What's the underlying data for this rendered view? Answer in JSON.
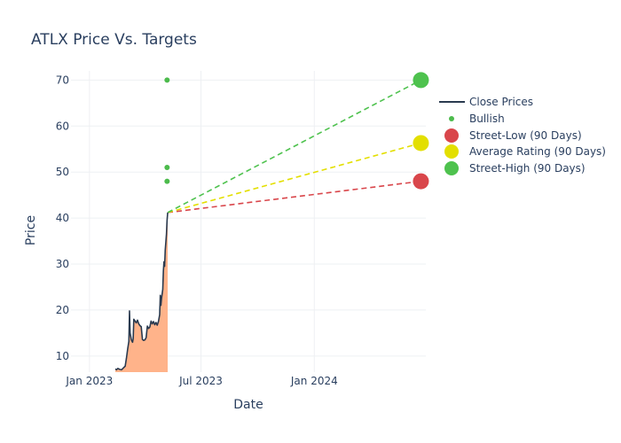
{
  "chart_data": {
    "type": "line",
    "title": "ATLX Price Vs. Targets",
    "xlabel": "Date",
    "ylabel": "Price",
    "x_range": [
      "2022-12-02",
      "2024-06-30"
    ],
    "ylim": [
      6.5,
      72
    ],
    "x_ticks": [
      {
        "date": "2023-01-01",
        "label": "Jan 2023"
      },
      {
        "date": "2023-07-01",
        "label": "Jul 2023"
      },
      {
        "date": "2024-01-01",
        "label": "Jan 2024"
      }
    ],
    "y_ticks": [
      10,
      20,
      30,
      40,
      50,
      60,
      70
    ],
    "grid": true,
    "legend_position": "top-right",
    "series": [
      {
        "name": "Close Prices",
        "kind": "line",
        "color": "#2a3a4f",
        "fill_color": "#ffb38a",
        "points": [
          [
            "2023-02-12",
            7.2
          ],
          [
            "2023-02-14",
            7.0
          ],
          [
            "2023-02-16",
            7.3
          ],
          [
            "2023-02-19",
            7.1
          ],
          [
            "2023-02-22",
            7.0
          ],
          [
            "2023-02-25",
            7.4
          ],
          [
            "2023-02-28",
            7.8
          ],
          [
            "2023-03-02",
            9.5
          ],
          [
            "2023-03-04",
            11.5
          ],
          [
            "2023-03-06",
            13.2
          ],
          [
            "2023-03-07",
            19.8
          ],
          [
            "2023-03-08",
            15.0
          ],
          [
            "2023-03-10",
            13.5
          ],
          [
            "2023-03-12",
            13.0
          ],
          [
            "2023-03-13",
            13.8
          ],
          [
            "2023-03-14",
            18.0
          ],
          [
            "2023-03-16",
            17.6
          ],
          [
            "2023-03-18",
            17.2
          ],
          [
            "2023-03-20",
            17.8
          ],
          [
            "2023-03-22",
            17.0
          ],
          [
            "2023-03-24",
            16.6
          ],
          [
            "2023-03-26",
            16.4
          ],
          [
            "2023-03-28",
            13.6
          ],
          [
            "2023-03-30",
            13.4
          ],
          [
            "2023-04-01",
            13.5
          ],
          [
            "2023-04-03",
            14.0
          ],
          [
            "2023-04-05",
            16.5
          ],
          [
            "2023-04-07",
            16.0
          ],
          [
            "2023-04-09",
            16.3
          ],
          [
            "2023-04-11",
            17.6
          ],
          [
            "2023-04-13",
            17.0
          ],
          [
            "2023-04-15",
            17.5
          ],
          [
            "2023-04-17",
            16.8
          ],
          [
            "2023-04-19",
            17.3
          ],
          [
            "2023-04-21",
            16.7
          ],
          [
            "2023-04-23",
            17.5
          ],
          [
            "2023-04-25",
            19.0
          ],
          [
            "2023-04-26",
            23.2
          ],
          [
            "2023-04-27",
            21.0
          ],
          [
            "2023-04-28",
            22.5
          ],
          [
            "2023-04-29",
            23.5
          ],
          [
            "2023-04-30",
            24.5
          ],
          [
            "2023-05-01",
            28.5
          ],
          [
            "2023-05-02",
            30.5
          ],
          [
            "2023-05-03",
            29.5
          ],
          [
            "2023-05-04",
            33.0
          ],
          [
            "2023-05-06",
            36.5
          ],
          [
            "2023-05-07",
            39.5
          ],
          [
            "2023-05-08",
            41.2
          ]
        ]
      },
      {
        "name": "Bullish",
        "kind": "markers",
        "color": "#4cbb4c",
        "points": [
          [
            "2023-05-07",
            70
          ],
          [
            "2023-05-07",
            51
          ],
          [
            "2023-05-07",
            48
          ]
        ]
      },
      {
        "name": "Street-Low (90 Days)",
        "kind": "target",
        "color": "#d9464b",
        "line_from": [
          "2023-05-08",
          41.2
        ],
        "point": [
          "2024-06-22",
          48
        ]
      },
      {
        "name": "Average Rating (90 Days)",
        "kind": "target",
        "color": "#e3df00",
        "line_from": [
          "2023-05-08",
          41.2
        ],
        "point": [
          "2024-06-22",
          56.3
        ]
      },
      {
        "name": "Street-High (90 Days)",
        "kind": "target",
        "color": "#4ec24e",
        "line_from": [
          "2023-05-08",
          41.2
        ],
        "point": [
          "2024-06-22",
          70
        ]
      }
    ]
  }
}
